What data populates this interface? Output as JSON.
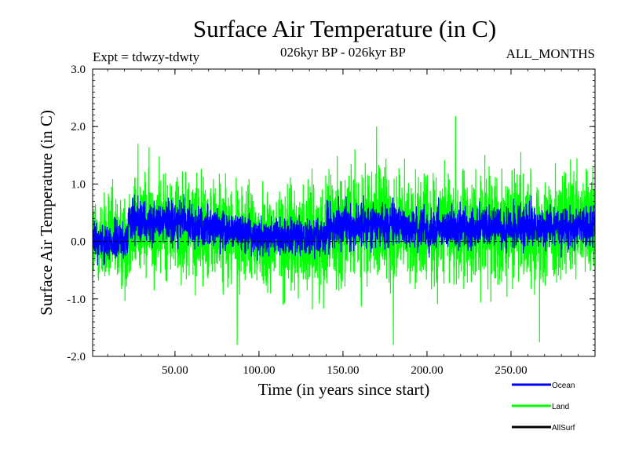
{
  "chart_data": {
    "type": "line",
    "title": "Surface Air Temperature (in C)",
    "subtitle_left": "Expt = tdwzy-tdwty",
    "subtitle_center": "026kyr BP - 026kyr BP",
    "subtitle_right": "ALL_MONTHS",
    "xlabel": "Time (in years since start)",
    "ylabel": "Surface Air Temperature (in C)",
    "xlim": [
      1,
      300
    ],
    "ylim": [
      -2.0,
      3.0
    ],
    "x_ticks": [
      50,
      100,
      150,
      200,
      250
    ],
    "x_tick_labels": [
      "50.00",
      "100.00",
      "150.00",
      "200.00",
      "250.00"
    ],
    "y_ticks": [
      -2,
      -1,
      0,
      1,
      2,
      3
    ],
    "y_tick_labels": [
      "-2.0",
      "-1.0",
      "0.0",
      "1.0",
      "2.0",
      "3.0"
    ],
    "samples_per_year": 12,
    "zero_line": true,
    "legend_position": "bottom-right",
    "series": [
      {
        "name": "Land",
        "color": "#00ff00",
        "description": "monthly anomaly, approx mean offset per segment, range about -1.8 to 2.2",
        "segments": [
          {
            "x_start": 1,
            "x_end": 22,
            "mean": 0.0,
            "amplitude": 0.55
          },
          {
            "x_start": 22,
            "x_end": 60,
            "mean": 0.3,
            "amplitude": 0.6
          },
          {
            "x_start": 60,
            "x_end": 80,
            "mean": 0.2,
            "amplitude": 0.6
          },
          {
            "x_start": 80,
            "x_end": 95,
            "mean": 0.1,
            "amplitude": 0.55
          },
          {
            "x_start": 95,
            "x_end": 140,
            "mean": 0.05,
            "amplitude": 0.6
          },
          {
            "x_start": 140,
            "x_end": 185,
            "mean": 0.25,
            "amplitude": 0.65
          },
          {
            "x_start": 185,
            "x_end": 230,
            "mean": 0.2,
            "amplitude": 0.62
          },
          {
            "x_start": 230,
            "x_end": 300,
            "mean": 0.25,
            "amplitude": 0.62
          }
        ],
        "extremes": [
          {
            "x": 28,
            "y": 1.7
          },
          {
            "x": 87,
            "y": -1.8
          },
          {
            "x": 170,
            "y": 2.0
          },
          {
            "x": 180,
            "y": -1.8
          },
          {
            "x": 217,
            "y": 2.18
          },
          {
            "x": 267,
            "y": -1.75
          }
        ]
      },
      {
        "name": "Ocean",
        "color": "#0000ff",
        "description": "monthly anomaly, range about -0.5 to 0.8",
        "segments": [
          {
            "x_start": 1,
            "x_end": 22,
            "mean": 0.0,
            "amplitude": 0.22
          },
          {
            "x_start": 22,
            "x_end": 60,
            "mean": 0.32,
            "amplitude": 0.25
          },
          {
            "x_start": 60,
            "x_end": 80,
            "mean": 0.25,
            "amplitude": 0.22
          },
          {
            "x_start": 80,
            "x_end": 95,
            "mean": 0.15,
            "amplitude": 0.22
          },
          {
            "x_start": 95,
            "x_end": 140,
            "mean": 0.08,
            "amplitude": 0.22
          },
          {
            "x_start": 140,
            "x_end": 185,
            "mean": 0.28,
            "amplitude": 0.25
          },
          {
            "x_start": 185,
            "x_end": 230,
            "mean": 0.22,
            "amplitude": 0.24
          },
          {
            "x_start": 230,
            "x_end": 300,
            "mean": 0.25,
            "amplitude": 0.24
          }
        ],
        "extremes": [
          {
            "x": 28,
            "y": 0.8
          },
          {
            "x": 262,
            "y": 0.8
          }
        ]
      },
      {
        "name": "AllSurf",
        "color": "#000000",
        "description": "drawn at zero reference (dashed)",
        "segments": [],
        "extremes": []
      }
    ],
    "legend": [
      {
        "label": "Ocean",
        "color": "#0000ff"
      },
      {
        "label": "Land",
        "color": "#00ff00"
      },
      {
        "label": "AllSurf",
        "color": "#000000"
      }
    ]
  }
}
